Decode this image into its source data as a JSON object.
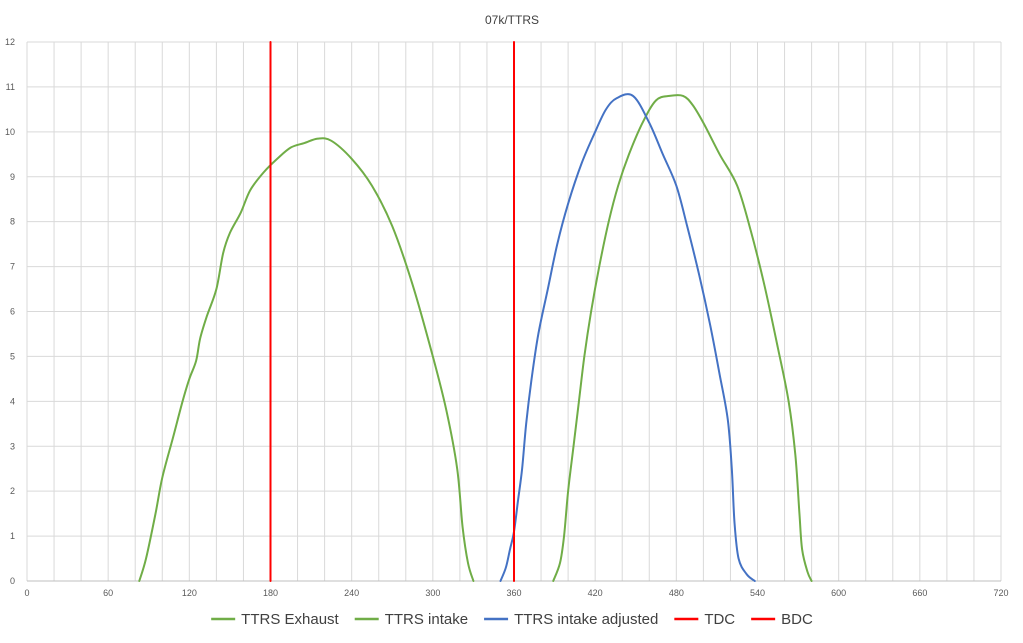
{
  "chart_data": {
    "type": "line",
    "title": "07k/TTRS",
    "xlabel": "",
    "ylabel": "",
    "xlim": [
      0,
      720
    ],
    "ylim": [
      0,
      12
    ],
    "x_ticks": [
      0,
      60,
      120,
      180,
      240,
      300,
      360,
      420,
      480,
      540,
      600,
      660,
      720
    ],
    "y_ticks": [
      0,
      1,
      2,
      3,
      4,
      5,
      6,
      7,
      8,
      9,
      10,
      11,
      12
    ],
    "x_gridline_step": 20,
    "grid": true,
    "legend_position": "bottom",
    "series": [
      {
        "name": "TTRS Exhaust",
        "color": "#70ad47",
        "points": [
          [
            83,
            0
          ],
          [
            88,
            0.5
          ],
          [
            95,
            1.5
          ],
          [
            100,
            2.3
          ],
          [
            108,
            3.2
          ],
          [
            115,
            4.0
          ],
          [
            120,
            4.5
          ],
          [
            125,
            4.9
          ],
          [
            128,
            5.4
          ],
          [
            133,
            5.9
          ],
          [
            140,
            6.5
          ],
          [
            145,
            7.3
          ],
          [
            150,
            7.75
          ],
          [
            158,
            8.2
          ],
          [
            165,
            8.7
          ],
          [
            175,
            9.1
          ],
          [
            185,
            9.4
          ],
          [
            195,
            9.65
          ],
          [
            205,
            9.75
          ],
          [
            215,
            9.85
          ],
          [
            225,
            9.8
          ],
          [
            240,
            9.4
          ],
          [
            255,
            8.8
          ],
          [
            270,
            7.9
          ],
          [
            285,
            6.6
          ],
          [
            300,
            5.0
          ],
          [
            310,
            3.8
          ],
          [
            318,
            2.5
          ],
          [
            322,
            1.2
          ],
          [
            326,
            0.4
          ],
          [
            330,
            0
          ]
        ]
      },
      {
        "name": "TTRS intake",
        "color": "#70ad47",
        "points": [
          [
            389,
            0
          ],
          [
            394,
            0.4
          ],
          [
            397,
            1.0
          ],
          [
            400,
            2.0
          ],
          [
            404,
            3.0
          ],
          [
            408,
            4.0
          ],
          [
            412,
            5.0
          ],
          [
            417,
            6.0
          ],
          [
            423,
            7.0
          ],
          [
            430,
            8.0
          ],
          [
            437,
            8.8
          ],
          [
            445,
            9.5
          ],
          [
            455,
            10.2
          ],
          [
            465,
            10.7
          ],
          [
            475,
            10.8
          ],
          [
            485,
            10.8
          ],
          [
            492,
            10.6
          ],
          [
            500,
            10.2
          ],
          [
            512,
            9.5
          ],
          [
            525,
            8.8
          ],
          [
            535,
            7.8
          ],
          [
            545,
            6.6
          ],
          [
            555,
            5.2
          ],
          [
            563,
            4.0
          ],
          [
            568,
            2.8
          ],
          [
            571,
            1.5
          ],
          [
            573,
            0.7
          ],
          [
            577,
            0.2
          ],
          [
            580,
            0
          ]
        ]
      },
      {
        "name": "TTRS intake adjusted",
        "color": "#4472c4",
        "points": [
          [
            350,
            0
          ],
          [
            354,
            0.3
          ],
          [
            357,
            0.7
          ],
          [
            360,
            1.1
          ],
          [
            363,
            1.8
          ],
          [
            366,
            2.5
          ],
          [
            369,
            3.5
          ],
          [
            373,
            4.5
          ],
          [
            378,
            5.5
          ],
          [
            385,
            6.5
          ],
          [
            392,
            7.5
          ],
          [
            400,
            8.4
          ],
          [
            410,
            9.3
          ],
          [
            420,
            10.0
          ],
          [
            428,
            10.5
          ],
          [
            436,
            10.75
          ],
          [
            448,
            10.8
          ],
          [
            460,
            10.2
          ],
          [
            470,
            9.5
          ],
          [
            480,
            8.8
          ],
          [
            488,
            7.9
          ],
          [
            497,
            6.8
          ],
          [
            505,
            5.7
          ],
          [
            512,
            4.6
          ],
          [
            518,
            3.6
          ],
          [
            521,
            2.5
          ],
          [
            523,
            1.3
          ],
          [
            526,
            0.5
          ],
          [
            532,
            0.15
          ],
          [
            538,
            0
          ]
        ]
      },
      {
        "name": "TDC",
        "color": "#ff0000",
        "points": [
          [
            180,
            0
          ],
          [
            180,
            12
          ]
        ]
      },
      {
        "name": "BDC",
        "color": "#ff0000",
        "points": [
          [
            360,
            0
          ],
          [
            360,
            12
          ]
        ]
      }
    ]
  }
}
